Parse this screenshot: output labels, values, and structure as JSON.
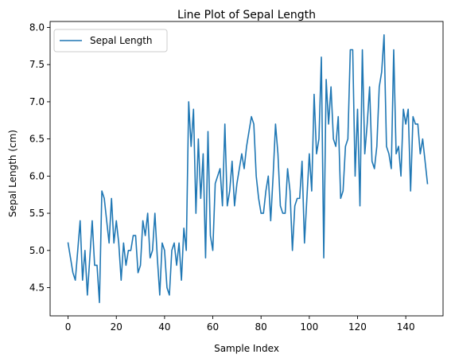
{
  "chart_data": {
    "type": "line",
    "title": "Line Plot of Sepal Length",
    "xlabel": "Sample Index",
    "ylabel": "Sepal Length (cm)",
    "xlim": [
      -7.45,
      155.45
    ],
    "ylim": [
      4.12,
      8.08
    ],
    "xticks": [
      0,
      20,
      40,
      60,
      80,
      100,
      120,
      140
    ],
    "yticks": [
      4.5,
      5.0,
      5.5,
      6.0,
      6.5,
      7.0,
      7.5,
      8.0
    ],
    "xtick_labels": [
      "0",
      "20",
      "40",
      "60",
      "80",
      "100",
      "120",
      "140"
    ],
    "ytick_labels": [
      "4.5",
      "5.0",
      "5.5",
      "6.0",
      "6.5",
      "7.0",
      "7.5",
      "8.0"
    ],
    "grid": false,
    "legend": "upper-left",
    "colors": {
      "series": "#1f77b4",
      "axes": "#000000",
      "legend_border": "#cccccc"
    },
    "series": [
      {
        "name": "Sepal Length",
        "values": [
          5.1,
          4.9,
          4.7,
          4.6,
          5.0,
          5.4,
          4.6,
          5.0,
          4.4,
          4.9,
          5.4,
          4.8,
          4.8,
          4.3,
          5.8,
          5.7,
          5.4,
          5.1,
          5.7,
          5.1,
          5.4,
          5.1,
          4.6,
          5.1,
          4.8,
          5.0,
          5.0,
          5.2,
          5.2,
          4.7,
          4.8,
          5.4,
          5.2,
          5.5,
          4.9,
          5.0,
          5.5,
          4.9,
          4.4,
          5.1,
          5.0,
          4.5,
          4.4,
          5.0,
          5.1,
          4.8,
          5.1,
          4.6,
          5.3,
          5.0,
          7.0,
          6.4,
          6.9,
          5.5,
          6.5,
          5.7,
          6.3,
          4.9,
          6.6,
          5.2,
          5.0,
          5.9,
          6.0,
          6.1,
          5.6,
          6.7,
          5.6,
          5.8,
          6.2,
          5.6,
          5.9,
          6.1,
          6.3,
          6.1,
          6.4,
          6.6,
          6.8,
          6.7,
          6.0,
          5.7,
          5.5,
          5.5,
          5.8,
          6.0,
          5.4,
          6.0,
          6.7,
          6.3,
          5.6,
          5.5,
          5.5,
          6.1,
          5.8,
          5.0,
          5.6,
          5.7,
          5.7,
          6.2,
          5.1,
          5.7,
          6.3,
          5.8,
          7.1,
          6.3,
          6.5,
          7.6,
          4.9,
          7.3,
          6.7,
          7.2,
          6.5,
          6.4,
          6.8,
          5.7,
          5.8,
          6.4,
          6.5,
          7.7,
          7.7,
          6.0,
          6.9,
          5.6,
          7.7,
          6.3,
          6.7,
          7.2,
          6.2,
          6.1,
          6.4,
          7.2,
          7.4,
          7.9,
          6.4,
          6.3,
          6.1,
          7.7,
          6.3,
          6.4,
          6.0,
          6.9,
          6.7,
          6.9,
          5.8,
          6.8,
          6.7,
          6.7,
          6.3,
          6.5,
          6.2,
          5.9
        ]
      }
    ]
  }
}
